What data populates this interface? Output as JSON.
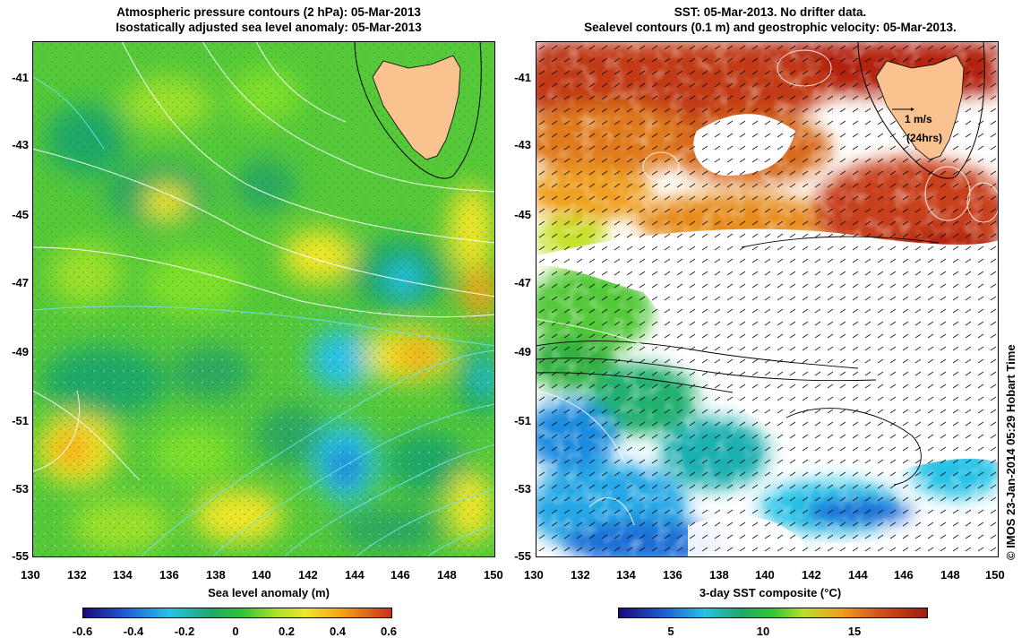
{
  "left_panel": {
    "title_line1": "Atmospheric pressure contours (2 hPa): 05-Mar-2013",
    "title_line2": "Isostatically adjusted sea level anomaly: 05-Mar-2013",
    "colorbar_label": "Sea level anomaly (m)",
    "colorbar_ticks": [
      "-0.6",
      "-0.4",
      "-0.2",
      "0",
      "0.2",
      "0.4",
      "0.6"
    ]
  },
  "right_panel": {
    "title_line1": "SST: 05-Mar-2013. No drifter data.",
    "title_line2": "Sealevel contours (0.1 m) and geostrophic velocity: 05-Mar-2013.",
    "colorbar_label": "3-day SST composite (°C)",
    "colorbar_ticks": [
      "5",
      "10",
      "15"
    ],
    "scale_arrow_label": "1 m/s",
    "scale_arrow_sublabel": "(24hrs)"
  },
  "axes": {
    "x_ticks": [
      "130",
      "132",
      "134",
      "136",
      "138",
      "140",
      "142",
      "144",
      "146",
      "148",
      "150"
    ],
    "y_ticks": [
      "-41",
      "-43",
      "-45",
      "-47",
      "-49",
      "-51",
      "-53",
      "-55"
    ]
  },
  "credit": "© IMOS 23-Jan-2014 05:29 Hobart Time",
  "colors": {
    "land": "#f9c28f",
    "sla_scale": [
      "#1a0a7a",
      "#1f5fd6",
      "#27c2e6",
      "#1fa867",
      "#33c632",
      "#7fe02a",
      "#f0e628",
      "#f5a318",
      "#c8301b"
    ],
    "sst_scale": [
      "#1a0a7a",
      "#1f5fd6",
      "#27c2e6",
      "#1fa867",
      "#33c632",
      "#b8e02a",
      "#f0a020",
      "#d0501a",
      "#a01a10"
    ]
  }
}
